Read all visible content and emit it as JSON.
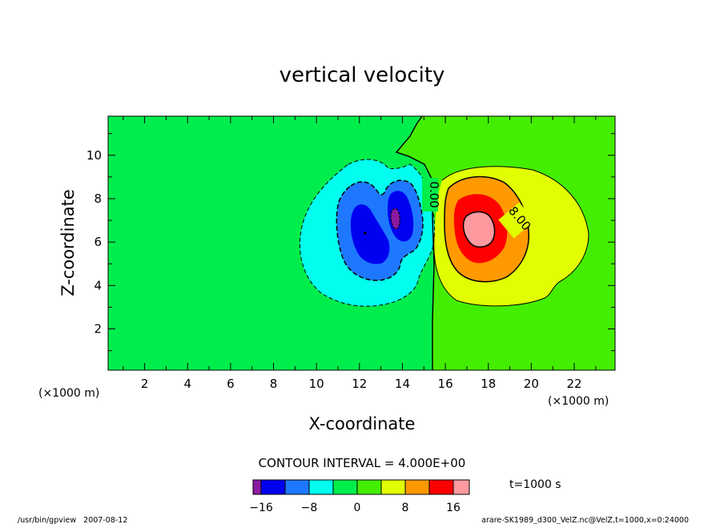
{
  "chart_data": {
    "type": "heatmap",
    "title": "vertical velocity",
    "xlabel": "X-coordinate",
    "ylabel": "Z-coordinate",
    "x_unit": "(×1000 m)",
    "y_unit": "(×1000 m)",
    "xlim": [
      0.3,
      23.9
    ],
    "ylim": [
      0.1,
      11.8
    ],
    "x_ticks": [
      2,
      4,
      6,
      8,
      10,
      12,
      14,
      16,
      18,
      20,
      22
    ],
    "y_ticks": [
      2,
      4,
      6,
      8,
      10
    ],
    "contour_interval": "CONTOUR INTERVAL = 4.000E+00",
    "contour_labels": [
      "0.00",
      "8.00"
    ],
    "colorbar": {
      "levels": [
        -16,
        -12,
        -8,
        -4,
        0,
        4,
        8,
        12,
        16
      ],
      "tick_labels": [
        "−16",
        "−8",
        "0",
        "8",
        "16"
      ],
      "colors": [
        "#8b1aa0",
        "#0000f0",
        "#1e78ff",
        "#00ffee",
        "#00ee4c",
        "#44ee00",
        "#e1ff00",
        "#ff9900",
        "#ff0000",
        "#ff99a0"
      ]
    },
    "negative_cell": {
      "center": [
        12.6,
        6.9
      ],
      "peak_value": -16,
      "extent_x": [
        9.3,
        15.2
      ],
      "extent_z": [
        2.8,
        9.4
      ]
    },
    "positive_cell": {
      "center": [
        17.3,
        6.7
      ],
      "peak_value": 16,
      "extent_x": [
        15.0,
        23.6
      ],
      "extent_z": [
        2.9,
        9.8
      ]
    },
    "time_label": "t=1000 s",
    "footer_left": "/usr/bin/gpview   2007-08-12",
    "footer_right": "arare-SK1989_d300_VelZ.nc@VelZ,t=1000,x=0:24000"
  }
}
